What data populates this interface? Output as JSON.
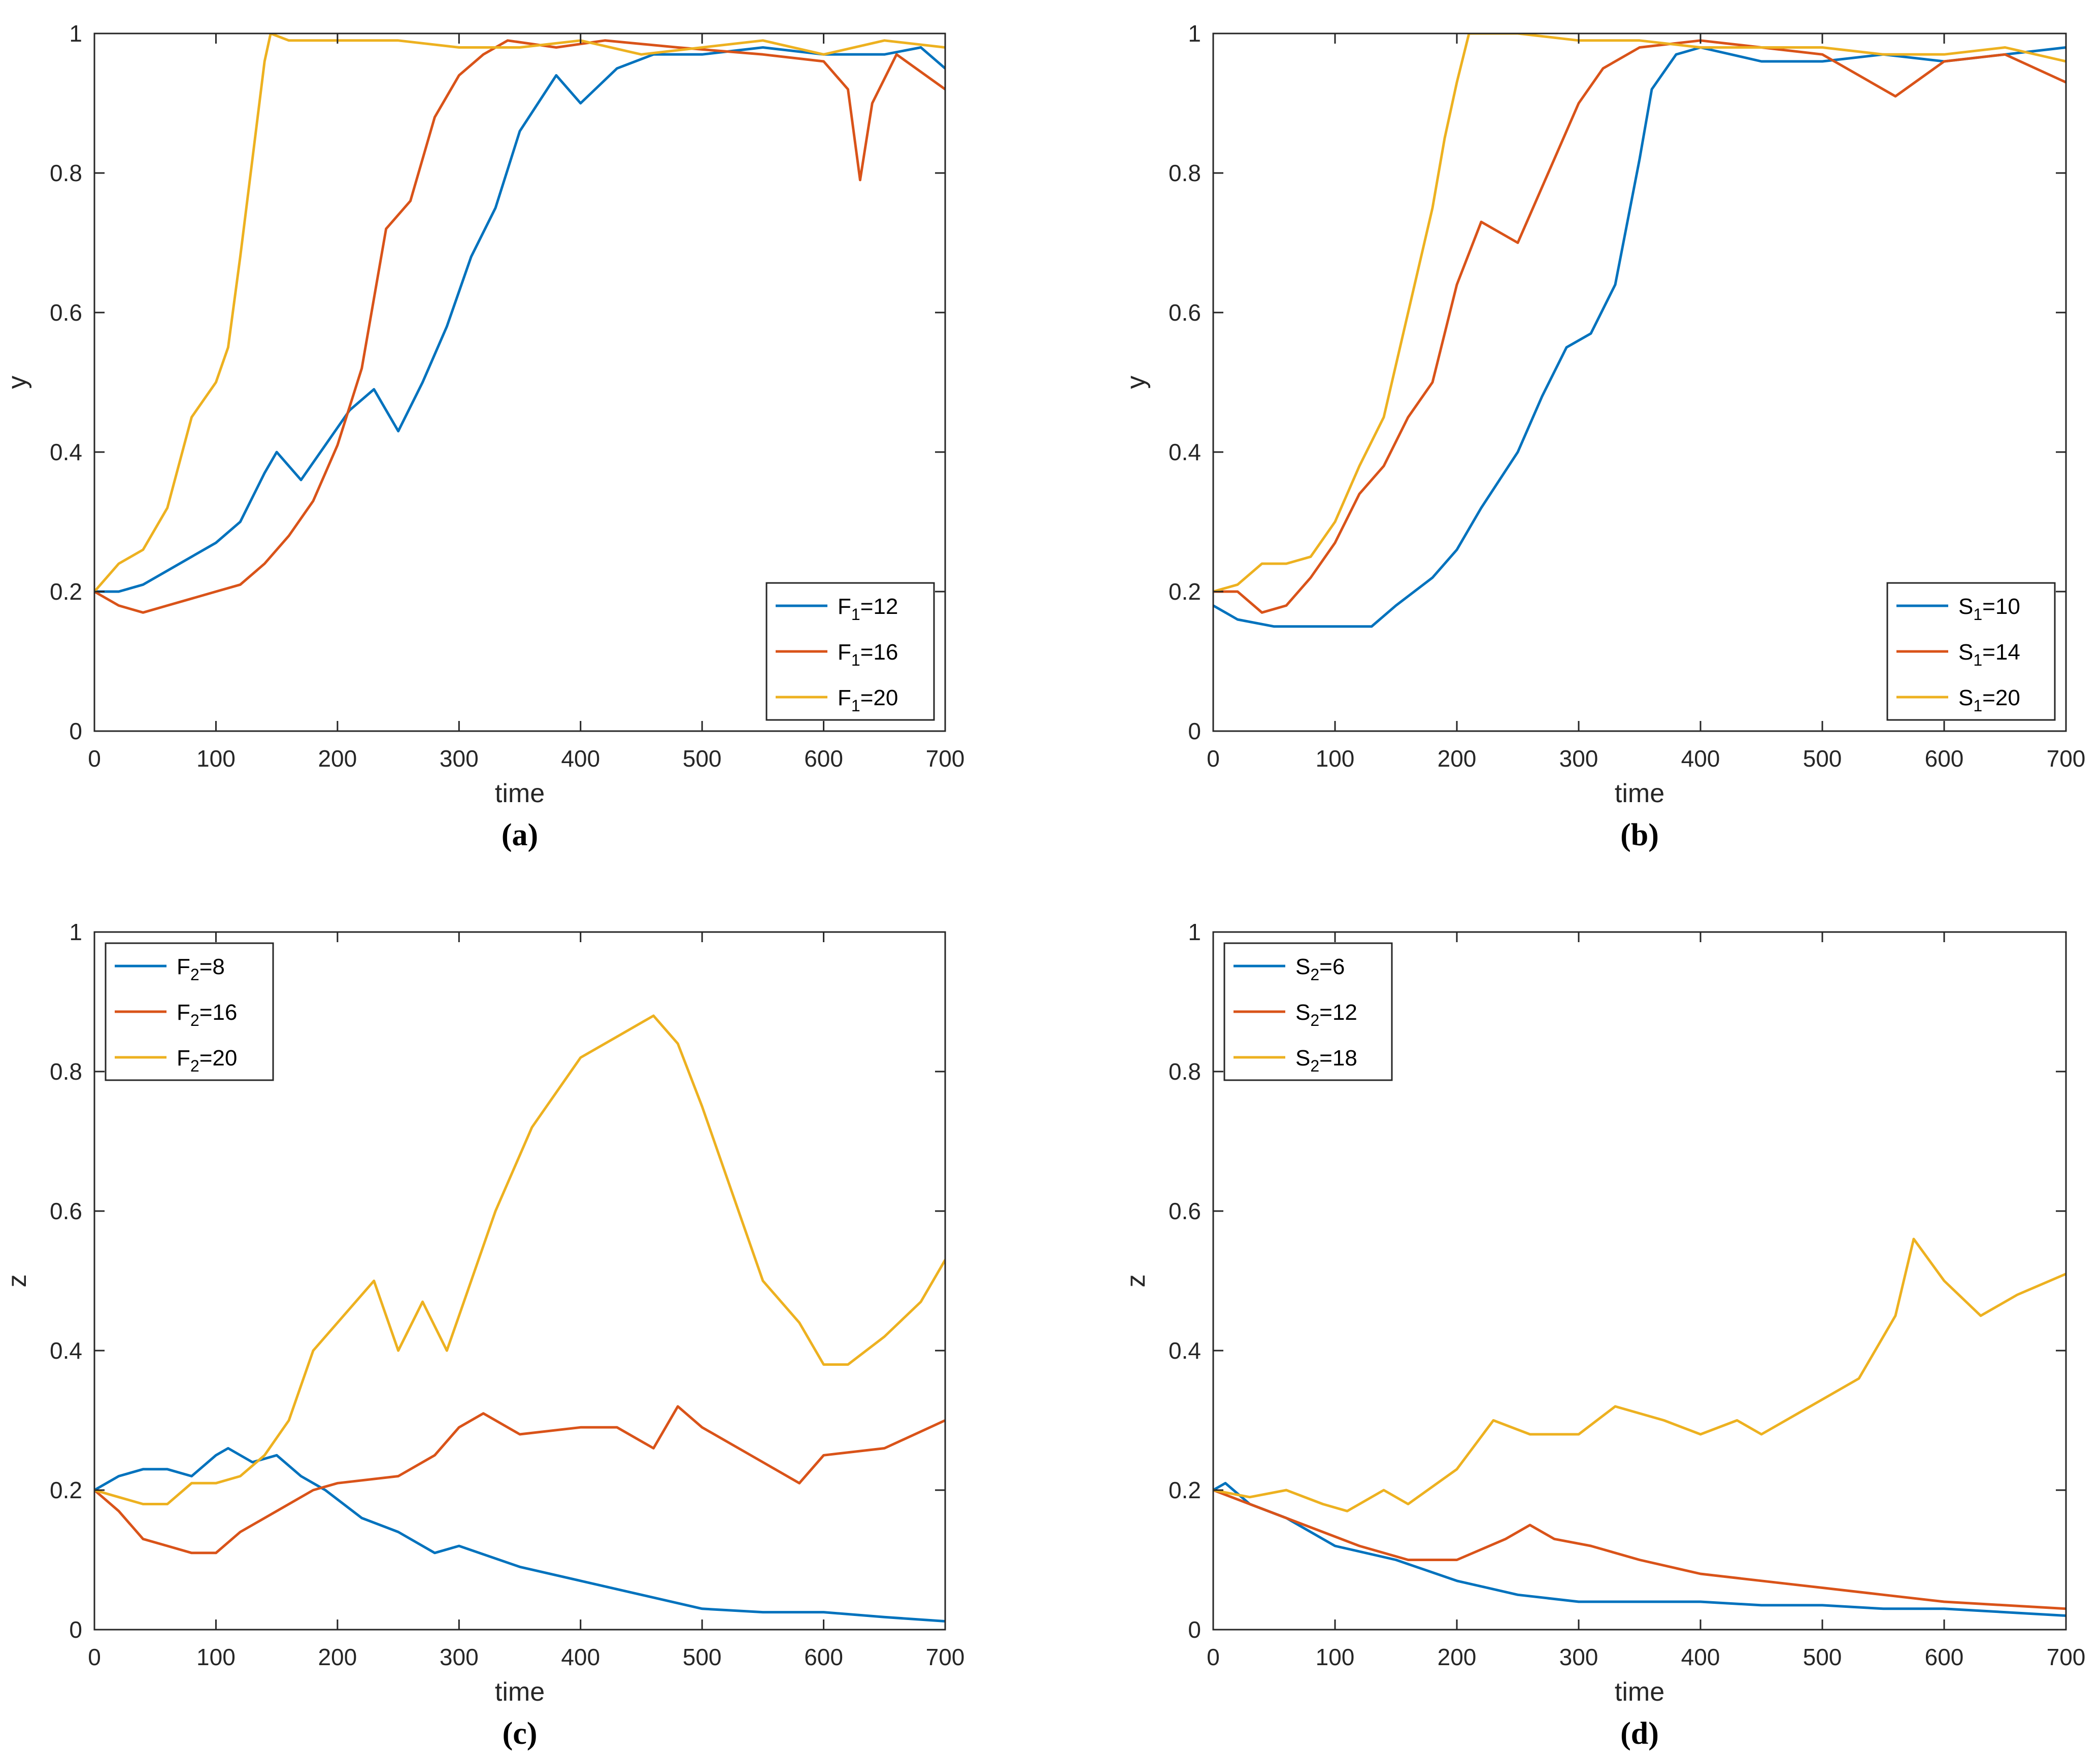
{
  "colors": {
    "blue": "#0072BD",
    "red": "#D95319",
    "yellow": "#EDB120",
    "axis": "#262626"
  },
  "chart_data": [
    {
      "panel_label": "(a)",
      "type": "line",
      "xlabel": "time",
      "ylabel": "y",
      "xlim": [
        0,
        700
      ],
      "ylim": [
        0,
        1
      ],
      "xticks": [
        "0",
        "100",
        "200",
        "300",
        "400",
        "500",
        "600",
        "700"
      ],
      "yticks": [
        "0",
        "0.2",
        "0.4",
        "0.6",
        "0.8",
        "1"
      ],
      "legend": "bottom-right",
      "series": [
        {
          "name": "F1=12",
          "base": "F",
          "sub": "1",
          "val": "=12",
          "color": "#0072BD",
          "x": [
            0,
            20,
            40,
            60,
            80,
            100,
            120,
            140,
            150,
            170,
            190,
            210,
            230,
            250,
            270,
            290,
            310,
            330,
            350,
            380,
            400,
            430,
            460,
            500,
            550,
            600,
            650,
            680,
            700
          ],
          "y": [
            0.2,
            0.2,
            0.21,
            0.23,
            0.25,
            0.27,
            0.3,
            0.37,
            0.4,
            0.36,
            0.41,
            0.46,
            0.49,
            0.43,
            0.5,
            0.58,
            0.68,
            0.75,
            0.86,
            0.94,
            0.9,
            0.95,
            0.97,
            0.97,
            0.98,
            0.97,
            0.97,
            0.98,
            0.95
          ]
        },
        {
          "name": "F1=16",
          "base": "F",
          "sub": "1",
          "val": "=16",
          "color": "#D95319",
          "x": [
            0,
            20,
            40,
            60,
            80,
            100,
            120,
            140,
            160,
            180,
            200,
            220,
            240,
            260,
            280,
            300,
            320,
            340,
            380,
            420,
            480,
            550,
            600,
            620,
            630,
            640,
            660,
            700
          ],
          "y": [
            0.2,
            0.18,
            0.17,
            0.18,
            0.19,
            0.2,
            0.21,
            0.24,
            0.28,
            0.33,
            0.41,
            0.52,
            0.72,
            0.76,
            0.88,
            0.94,
            0.97,
            0.99,
            0.98,
            0.99,
            0.98,
            0.97,
            0.96,
            0.92,
            0.79,
            0.9,
            0.97,
            0.92
          ]
        },
        {
          "name": "F1=20",
          "base": "F",
          "sub": "1",
          "val": "=20",
          "color": "#EDB120",
          "x": [
            0,
            20,
            40,
            60,
            80,
            100,
            110,
            120,
            130,
            140,
            145,
            160,
            200,
            250,
            300,
            350,
            400,
            450,
            500,
            550,
            600,
            650,
            700
          ],
          "y": [
            0.2,
            0.24,
            0.26,
            0.32,
            0.45,
            0.5,
            0.55,
            0.68,
            0.82,
            0.96,
            1.0,
            0.99,
            0.99,
            0.99,
            0.98,
            0.98,
            0.99,
            0.97,
            0.98,
            0.99,
            0.97,
            0.99,
            0.98
          ]
        }
      ]
    },
    {
      "panel_label": "(b)",
      "type": "line",
      "xlabel": "time",
      "ylabel": "y",
      "xlim": [
        0,
        700
      ],
      "ylim": [
        0,
        1
      ],
      "xticks": [
        "0",
        "100",
        "200",
        "300",
        "400",
        "500",
        "600",
        "700"
      ],
      "yticks": [
        "0",
        "0.2",
        "0.4",
        "0.6",
        "0.8",
        "1"
      ],
      "legend": "bottom-right",
      "series": [
        {
          "name": "S1=10",
          "base": "S",
          "sub": "1",
          "val": "=10",
          "color": "#0072BD",
          "x": [
            0,
            20,
            50,
            80,
            100,
            130,
            150,
            180,
            200,
            220,
            250,
            270,
            290,
            310,
            330,
            350,
            360,
            380,
            400,
            450,
            500,
            550,
            600,
            650,
            700
          ],
          "y": [
            0.18,
            0.16,
            0.15,
            0.15,
            0.15,
            0.15,
            0.18,
            0.22,
            0.26,
            0.32,
            0.4,
            0.48,
            0.55,
            0.57,
            0.64,
            0.82,
            0.92,
            0.97,
            0.98,
            0.96,
            0.96,
            0.97,
            0.96,
            0.97,
            0.98
          ]
        },
        {
          "name": "S1=14",
          "base": "S",
          "sub": "1",
          "val": "=14",
          "color": "#D95319",
          "x": [
            0,
            20,
            40,
            60,
            80,
            100,
            120,
            140,
            160,
            180,
            200,
            220,
            250,
            270,
            300,
            320,
            350,
            400,
            450,
            500,
            560,
            600,
            650,
            700
          ],
          "y": [
            0.2,
            0.2,
            0.17,
            0.18,
            0.22,
            0.27,
            0.34,
            0.38,
            0.45,
            0.5,
            0.64,
            0.73,
            0.7,
            0.78,
            0.9,
            0.95,
            0.98,
            0.99,
            0.98,
            0.97,
            0.91,
            0.96,
            0.97,
            0.93
          ]
        },
        {
          "name": "S1=20",
          "base": "S",
          "sub": "1",
          "val": "=20",
          "color": "#EDB120",
          "x": [
            0,
            20,
            40,
            60,
            80,
            100,
            120,
            140,
            160,
            180,
            190,
            200,
            210,
            250,
            300,
            350,
            400,
            450,
            500,
            550,
            600,
            650,
            700
          ],
          "y": [
            0.2,
            0.21,
            0.24,
            0.24,
            0.25,
            0.3,
            0.38,
            0.45,
            0.6,
            0.75,
            0.85,
            0.93,
            1.0,
            1.0,
            0.99,
            0.99,
            0.98,
            0.98,
            0.98,
            0.97,
            0.97,
            0.98,
            0.96
          ]
        }
      ]
    },
    {
      "panel_label": "(c)",
      "type": "line",
      "xlabel": "time",
      "ylabel": "z",
      "xlim": [
        0,
        700
      ],
      "ylim": [
        0,
        1
      ],
      "xticks": [
        "0",
        "100",
        "200",
        "300",
        "400",
        "500",
        "600",
        "700"
      ],
      "yticks": [
        "0",
        "0.2",
        "0.4",
        "0.6",
        "0.8",
        "1"
      ],
      "legend": "top-left",
      "series": [
        {
          "name": "F2=8",
          "base": "F",
          "sub": "2",
          "val": "=8",
          "color": "#0072BD",
          "x": [
            0,
            20,
            40,
            60,
            80,
            100,
            110,
            130,
            150,
            170,
            190,
            220,
            250,
            280,
            300,
            350,
            400,
            450,
            500,
            550,
            600,
            650,
            700
          ],
          "y": [
            0.2,
            0.22,
            0.23,
            0.23,
            0.22,
            0.25,
            0.26,
            0.24,
            0.25,
            0.22,
            0.2,
            0.16,
            0.14,
            0.11,
            0.12,
            0.09,
            0.07,
            0.05,
            0.03,
            0.025,
            0.025,
            0.018,
            0.012
          ]
        },
        {
          "name": "F2=16",
          "base": "F",
          "sub": "2",
          "val": "=16",
          "color": "#D95319",
          "x": [
            0,
            20,
            40,
            60,
            80,
            100,
            120,
            150,
            180,
            200,
            250,
            280,
            300,
            320,
            350,
            400,
            430,
            460,
            480,
            500,
            550,
            580,
            600,
            650,
            700
          ],
          "y": [
            0.2,
            0.17,
            0.13,
            0.12,
            0.11,
            0.11,
            0.14,
            0.17,
            0.2,
            0.21,
            0.22,
            0.25,
            0.29,
            0.31,
            0.28,
            0.29,
            0.29,
            0.26,
            0.32,
            0.29,
            0.24,
            0.21,
            0.25,
            0.26,
            0.3
          ]
        },
        {
          "name": "F2=20",
          "base": "F",
          "sub": "2",
          "val": "=20",
          "color": "#EDB120",
          "x": [
            0,
            20,
            40,
            60,
            80,
            100,
            120,
            140,
            160,
            180,
            200,
            230,
            250,
            270,
            290,
            300,
            330,
            360,
            400,
            430,
            460,
            480,
            500,
            520,
            550,
            580,
            600,
            620,
            650,
            680,
            700
          ],
          "y": [
            0.2,
            0.19,
            0.18,
            0.18,
            0.21,
            0.21,
            0.22,
            0.25,
            0.3,
            0.4,
            0.44,
            0.5,
            0.4,
            0.47,
            0.4,
            0.45,
            0.6,
            0.72,
            0.82,
            0.85,
            0.88,
            0.84,
            0.75,
            0.65,
            0.5,
            0.44,
            0.38,
            0.38,
            0.42,
            0.47,
            0.53
          ]
        }
      ]
    },
    {
      "panel_label": "(d)",
      "type": "line",
      "xlabel": "time",
      "ylabel": "z",
      "xlim": [
        0,
        700
      ],
      "ylim": [
        0,
        1
      ],
      "xticks": [
        "0",
        "100",
        "200",
        "300",
        "400",
        "500",
        "600",
        "700"
      ],
      "yticks": [
        "0",
        "0.2",
        "0.4",
        "0.6",
        "0.8",
        "1"
      ],
      "legend": "top-left",
      "series": [
        {
          "name": "S2=6",
          "base": "S",
          "sub": "2",
          "val": "=6",
          "color": "#0072BD",
          "x": [
            0,
            10,
            30,
            60,
            100,
            150,
            200,
            250,
            300,
            350,
            400,
            450,
            500,
            550,
            600,
            650,
            700
          ],
          "y": [
            0.2,
            0.21,
            0.18,
            0.16,
            0.12,
            0.1,
            0.07,
            0.05,
            0.04,
            0.04,
            0.04,
            0.035,
            0.035,
            0.03,
            0.03,
            0.025,
            0.02
          ]
        },
        {
          "name": "S2=12",
          "base": "S",
          "sub": "2",
          "val": "=12",
          "color": "#D95319",
          "x": [
            0,
            30,
            60,
            90,
            120,
            160,
            200,
            240,
            260,
            280,
            310,
            350,
            400,
            450,
            500,
            550,
            600,
            650,
            700
          ],
          "y": [
            0.2,
            0.18,
            0.16,
            0.14,
            0.12,
            0.1,
            0.1,
            0.13,
            0.15,
            0.13,
            0.12,
            0.1,
            0.08,
            0.07,
            0.06,
            0.05,
            0.04,
            0.035,
            0.03
          ]
        },
        {
          "name": "S2=18",
          "base": "S",
          "sub": "2",
          "val": "=18",
          "color": "#EDB120",
          "x": [
            0,
            30,
            60,
            90,
            110,
            140,
            160,
            200,
            230,
            260,
            300,
            330,
            370,
            400,
            430,
            450,
            500,
            530,
            560,
            575,
            600,
            630,
            660,
            700
          ],
          "y": [
            0.2,
            0.19,
            0.2,
            0.18,
            0.17,
            0.2,
            0.18,
            0.23,
            0.3,
            0.28,
            0.28,
            0.32,
            0.3,
            0.28,
            0.3,
            0.28,
            0.33,
            0.36,
            0.45,
            0.56,
            0.5,
            0.45,
            0.48,
            0.51
          ]
        }
      ]
    }
  ]
}
